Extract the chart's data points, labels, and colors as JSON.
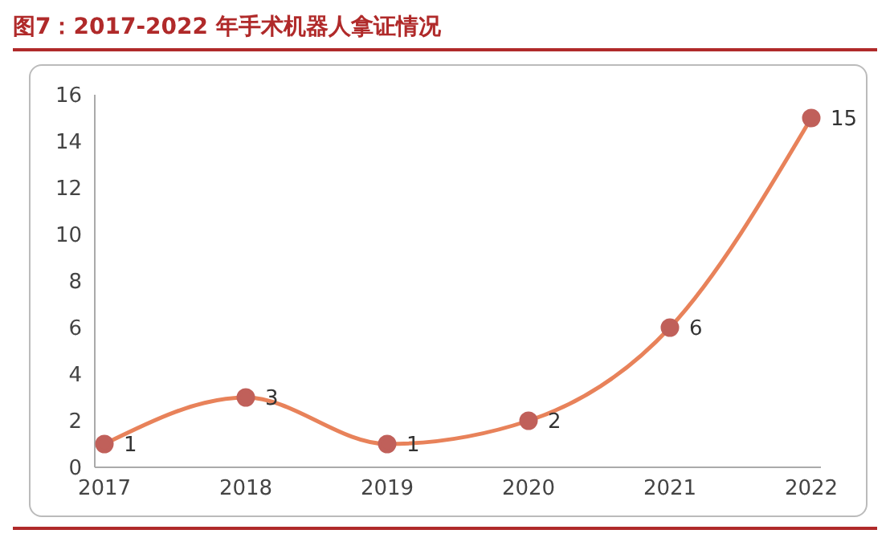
{
  "chart_data": {
    "type": "line",
    "title": "图7：2017-2022 年手术机器人拿证情况",
    "categories": [
      "2017",
      "2018",
      "2019",
      "2020",
      "2021",
      "2022"
    ],
    "series": [
      {
        "color": "#e8825a",
        "values": [
          1,
          3,
          1,
          2,
          6,
          15
        ]
      }
    ],
    "ylim": [
      0,
      16
    ],
    "yticks": [
      0,
      2,
      4,
      6,
      8,
      10,
      12,
      14,
      16
    ],
    "grid": false,
    "legend": false,
    "marker": "circle",
    "line_style": "solid",
    "data_labels": true
  }
}
